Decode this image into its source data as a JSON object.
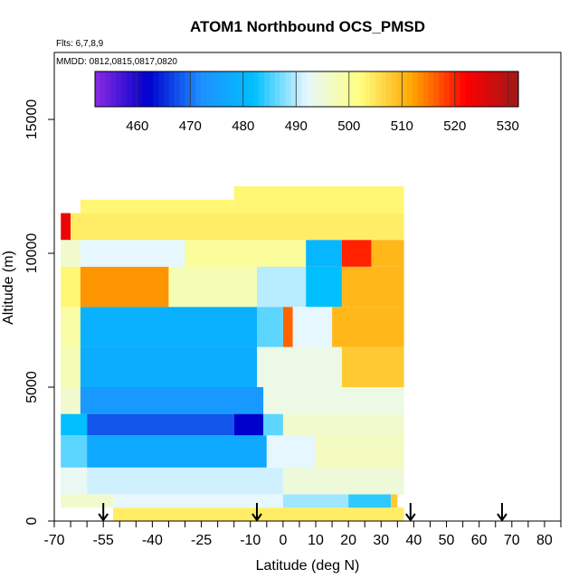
{
  "chart_data": {
    "type": "heatmap",
    "title": "ATOM1 Northbound OCS_PMSD",
    "subtitle_flights": "Flts: 6,7,8,9",
    "subtitle_dates": "MMDD: 0812,0815,0817,0820",
    "xlabel": "Latitude (deg N)",
    "ylabel": "Altitude (m)",
    "xlim": [
      -70,
      85
    ],
    "ylim": [
      0,
      17500
    ],
    "x_ticks": [
      -70,
      -55,
      -40,
      -25,
      -10,
      0,
      10,
      20,
      30,
      40,
      50,
      60,
      70,
      80
    ],
    "x_tick_labels": [
      "-70",
      "-55",
      "-40",
      "-25",
      "-10",
      "0",
      "10",
      "20",
      "30",
      "40",
      "50",
      "60",
      "70",
      "80"
    ],
    "x_minor_ticks": [
      -65,
      -60,
      -50,
      -45,
      -35,
      -30,
      -20,
      -15,
      -5,
      5,
      15,
      25,
      35,
      45,
      55,
      65,
      75,
      85
    ],
    "y_ticks": [
      0,
      5000,
      10000,
      15000
    ],
    "y_tick_labels": [
      "0",
      "5000",
      "10000",
      "15000"
    ],
    "colorbar": {
      "ticks": [
        460,
        470,
        480,
        490,
        500,
        510,
        520,
        530
      ],
      "tick_labels": [
        "460",
        "470",
        "480",
        "490",
        "500",
        "510",
        "520",
        "530"
      ],
      "range": [
        452,
        532
      ],
      "colors": [
        "#8a2be2",
        "#0000cd",
        "#1e90ff",
        "#00bfff",
        "#e6f7ff",
        "#ffff80",
        "#ffa500",
        "#ff0000",
        "#a01818"
      ]
    },
    "profile_markers_lat": [
      -55,
      -8,
      39,
      67
    ],
    "cells": [
      {
        "lat": [
          -52,
          37
        ],
        "alt": [
          0,
          500
        ],
        "value": 504
      },
      {
        "lat": [
          -68,
          -52
        ],
        "alt": [
          500,
          1000
        ],
        "value": 496
      },
      {
        "lat": [
          -52,
          0
        ],
        "alt": [
          500,
          1000
        ],
        "value": 492
      },
      {
        "lat": [
          0,
          20
        ],
        "alt": [
          500,
          1000
        ],
        "value": 489
      },
      {
        "lat": [
          20,
          33
        ],
        "alt": [
          500,
          1000
        ],
        "value": 484
      },
      {
        "lat": [
          33,
          35
        ],
        "alt": [
          500,
          1000
        ],
        "value": 508
      },
      {
        "lat": [
          -68,
          -60
        ],
        "alt": [
          1000,
          2000
        ],
        "value": 493
      },
      {
        "lat": [
          -60,
          0
        ],
        "alt": [
          1000,
          2000
        ],
        "value": 491
      },
      {
        "lat": [
          0,
          37
        ],
        "alt": [
          1000,
          2000
        ],
        "value": 495
      },
      {
        "lat": [
          -68,
          -60
        ],
        "alt": [
          2000,
          3200
        ],
        "value": 486
      },
      {
        "lat": [
          -60,
          -5
        ],
        "alt": [
          2000,
          3200
        ],
        "value": 477
      },
      {
        "lat": [
          -5,
          10
        ],
        "alt": [
          2000,
          3200
        ],
        "value": 492
      },
      {
        "lat": [
          10,
          37
        ],
        "alt": [
          2000,
          3200
        ],
        "value": 497
      },
      {
        "lat": [
          -68,
          -60
        ],
        "alt": [
          3200,
          4000
        ],
        "value": 482
      },
      {
        "lat": [
          -60,
          -15
        ],
        "alt": [
          3200,
          4000
        ],
        "value": 468
      },
      {
        "lat": [
          -15,
          -6
        ],
        "alt": [
          3200,
          4000
        ],
        "value": 462
      },
      {
        "lat": [
          -6,
          0
        ],
        "alt": [
          3200,
          4000
        ],
        "value": 486
      },
      {
        "lat": [
          0,
          37
        ],
        "alt": [
          3200,
          4000
        ],
        "value": 496
      },
      {
        "lat": [
          -68,
          -62
        ],
        "alt": [
          4000,
          5000
        ],
        "value": 496
      },
      {
        "lat": [
          -62,
          -6
        ],
        "alt": [
          4000,
          5000
        ],
        "value": 474
      },
      {
        "lat": [
          -6,
          37
        ],
        "alt": [
          4000,
          5000
        ],
        "value": 494
      },
      {
        "lat": [
          -68,
          -62
        ],
        "alt": [
          5000,
          6500
        ],
        "value": 498
      },
      {
        "lat": [
          -62,
          -8
        ],
        "alt": [
          5000,
          6500
        ],
        "value": 478
      },
      {
        "lat": [
          -8,
          18
        ],
        "alt": [
          5000,
          6500
        ],
        "value": 494
      },
      {
        "lat": [
          18,
          37
        ],
        "alt": [
          5000,
          6500
        ],
        "value": 508
      },
      {
        "lat": [
          -68,
          -62
        ],
        "alt": [
          6500,
          8000
        ],
        "value": 499
      },
      {
        "lat": [
          -62,
          -8
        ],
        "alt": [
          6500,
          8000
        ],
        "value": 479
      },
      {
        "lat": [
          -8,
          0
        ],
        "alt": [
          6500,
          8000
        ],
        "value": 486
      },
      {
        "lat": [
          0,
          3
        ],
        "alt": [
          6500,
          8000
        ],
        "value": 516
      },
      {
        "lat": [
          3,
          15
        ],
        "alt": [
          6500,
          8000
        ],
        "value": 492
      },
      {
        "lat": [
          15,
          37
        ],
        "alt": [
          6500,
          8000
        ],
        "value": 510
      },
      {
        "lat": [
          -68,
          -62
        ],
        "alt": [
          8000,
          9500
        ],
        "value": 503
      },
      {
        "lat": [
          -62,
          -35
        ],
        "alt": [
          8000,
          9500
        ],
        "value": 513
      },
      {
        "lat": [
          -35,
          -8
        ],
        "alt": [
          8000,
          9500
        ],
        "value": 498
      },
      {
        "lat": [
          -8,
          7
        ],
        "alt": [
          8000,
          9500
        ],
        "value": 490
      },
      {
        "lat": [
          7,
          18
        ],
        "alt": [
          8000,
          9500
        ],
        "value": 482
      },
      {
        "lat": [
          18,
          37
        ],
        "alt": [
          8000,
          9500
        ],
        "value": 510
      },
      {
        "lat": [
          -68,
          -62
        ],
        "alt": [
          9500,
          10500
        ],
        "value": 496
      },
      {
        "lat": [
          -62,
          -30
        ],
        "alt": [
          9500,
          10500
        ],
        "value": 492
      },
      {
        "lat": [
          -30,
          7
        ],
        "alt": [
          9500,
          10500
        ],
        "value": 500
      },
      {
        "lat": [
          7,
          18
        ],
        "alt": [
          9500,
          10500
        ],
        "value": 480
      },
      {
        "lat": [
          18,
          27
        ],
        "alt": [
          9500,
          10500
        ],
        "value": 520
      },
      {
        "lat": [
          27,
          37
        ],
        "alt": [
          9500,
          10500
        ],
        "value": 510
      },
      {
        "lat": [
          -68,
          -65
        ],
        "alt": [
          10500,
          11500
        ],
        "value": 524
      },
      {
        "lat": [
          -65,
          37
        ],
        "alt": [
          10500,
          11500
        ],
        "value": 504
      },
      {
        "lat": [
          -62,
          -15
        ],
        "alt": [
          11500,
          12000
        ],
        "value": 503
      },
      {
        "lat": [
          -15,
          37
        ],
        "alt": [
          11500,
          12500
        ],
        "value": 503
      }
    ],
    "grid": false,
    "legend_position": "top"
  }
}
